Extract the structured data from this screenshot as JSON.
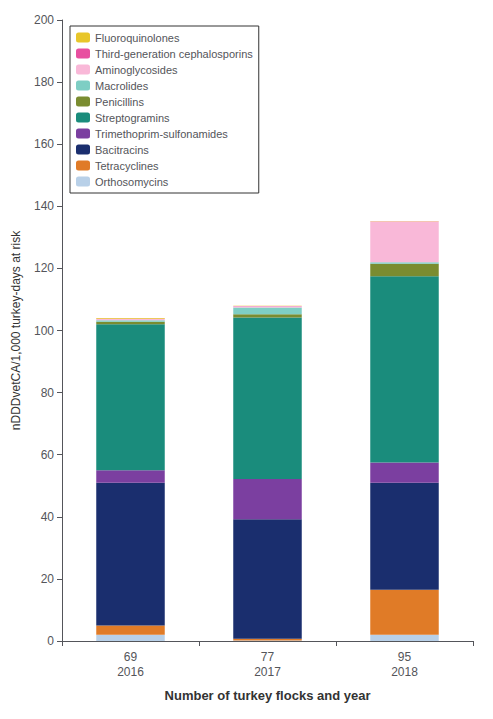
{
  "chart_data": {
    "type": "bar",
    "stacked": true,
    "categories": [
      "69\n2016",
      "77\n2017",
      "95\n2018"
    ],
    "xlabel": "Number of turkey flocks and year",
    "ylabel": "nDDDvetCA/1,000 turkey-days at risk",
    "ylim": [
      0,
      200
    ],
    "yticks": [
      0,
      20,
      40,
      60,
      80,
      100,
      120,
      140,
      160,
      180,
      200
    ],
    "grid": false,
    "legend": "upper left",
    "series": [
      {
        "name": "Orthosomycins",
        "color": "#b8d0e8",
        "values": [
          2.0,
          0.2,
          2.0
        ]
      },
      {
        "name": "Tetracyclines",
        "color": "#e07b27",
        "values": [
          3.0,
          0.5,
          14.5
        ]
      },
      {
        "name": "Bacitracins",
        "color": "#1a2e6e",
        "values": [
          46.0,
          38.5,
          34.5
        ]
      },
      {
        "name": "Trimethoprim-sulfonamides",
        "color": "#7b3fa0",
        "values": [
          4.0,
          13.0,
          6.5
        ]
      },
      {
        "name": "Streptogramins",
        "color": "#1a8c7c",
        "values": [
          47.0,
          52.0,
          60.0
        ]
      },
      {
        "name": "Penicillins",
        "color": "#7a8c30",
        "values": [
          0.8,
          1.0,
          4.0
        ]
      },
      {
        "name": "Macrolides",
        "color": "#7ecec4",
        "values": [
          0.5,
          2.2,
          0.5
        ]
      },
      {
        "name": "Aminoglycosides",
        "color": "#f9b8d8",
        "values": [
          0.4,
          0.4,
          13.0
        ]
      },
      {
        "name": "Third-generation cephalosporins",
        "color": "#e84fa0",
        "values": [
          0.1,
          0.1,
          0.1
        ]
      },
      {
        "name": "Fluoroquinolones",
        "color": "#e8c62a",
        "values": [
          0.2,
          0.1,
          0.1
        ]
      }
    ]
  }
}
